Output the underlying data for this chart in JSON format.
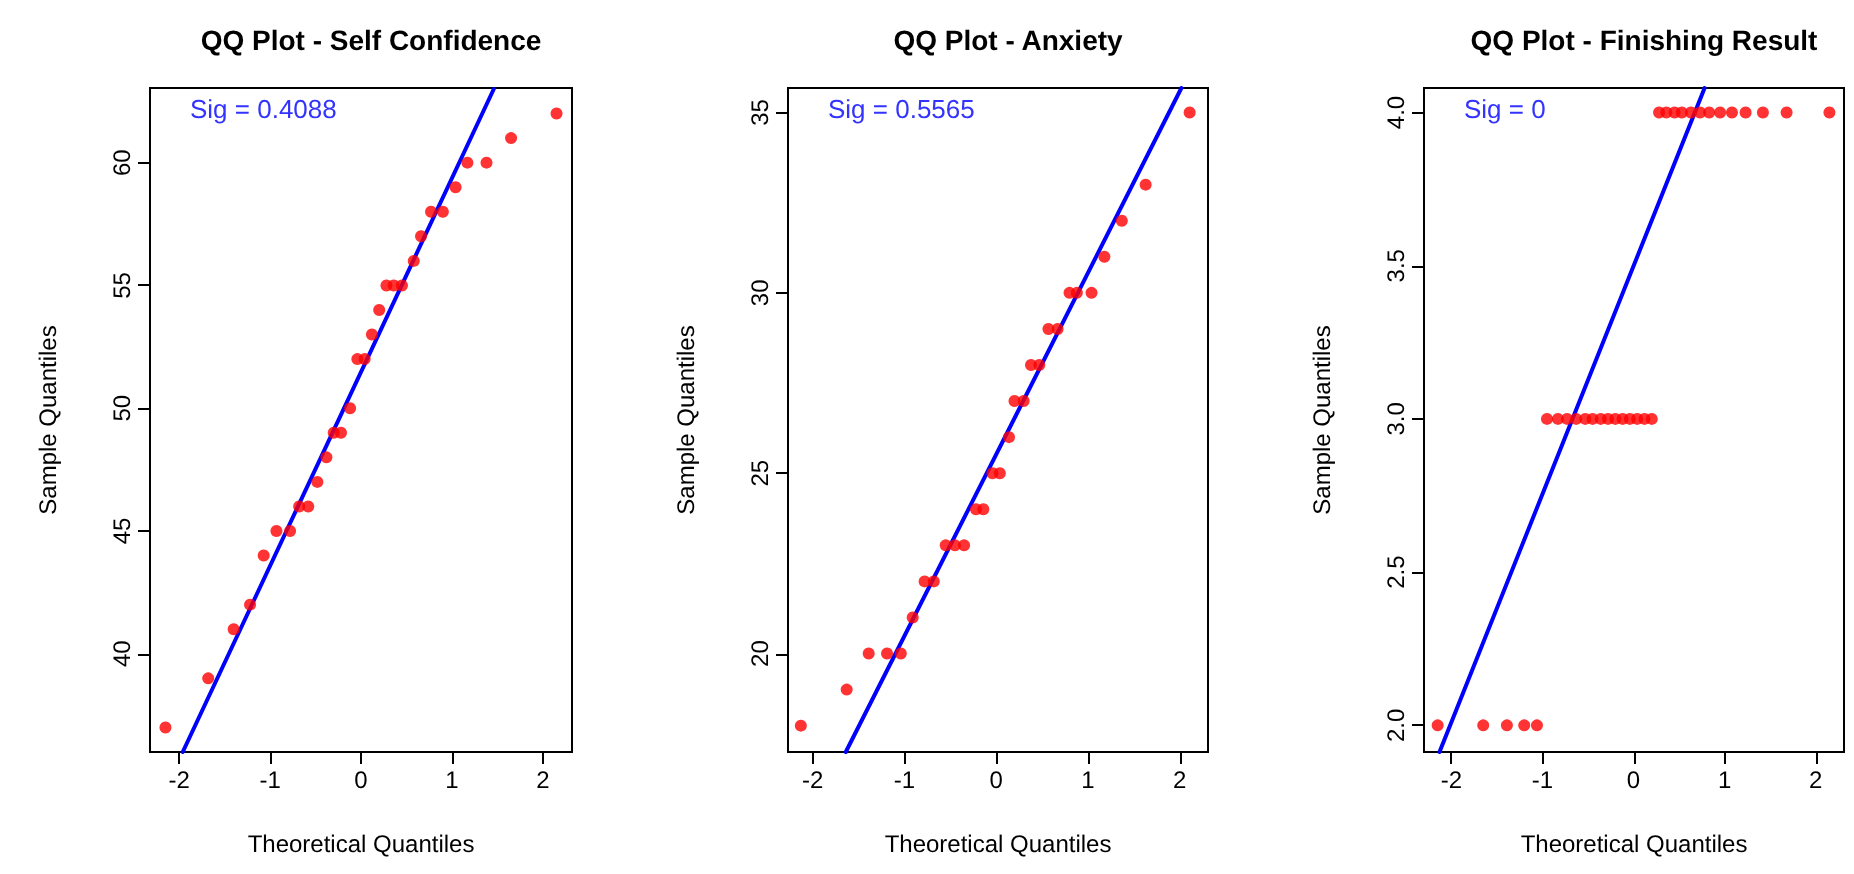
{
  "chart_data": [
    {
      "type": "scatter",
      "title": "QQ Plot - Self Confidence",
      "xlabel": "Theoretical Quantiles",
      "ylabel": "Sample Quantiles",
      "annotations": [
        "Sig = 0.4088"
      ],
      "grid": false,
      "xlim": [
        -2.32,
        2.32
      ],
      "xticks": [
        -2,
        -1,
        0,
        1,
        2
      ],
      "ylim": [
        36,
        63.04
      ],
      "yticks": [
        40,
        45,
        50,
        55,
        60
      ],
      "series": [
        {
          "marker": "circle",
          "color": "#ff0000",
          "x": [
            -2.15,
            -1.68,
            -1.4,
            -1.22,
            -1.07,
            -0.93,
            -0.78,
            -0.68,
            -0.58,
            -0.48,
            -0.38,
            -0.3,
            -0.22,
            -0.12,
            -0.04,
            0.04,
            0.12,
            0.2,
            0.28,
            0.36,
            0.45,
            0.58,
            0.66,
            0.77,
            0.9,
            1.04,
            1.17,
            1.38,
            1.65,
            2.15
          ],
          "values": [
            37,
            39,
            41,
            42,
            44,
            45,
            45,
            46,
            46,
            47,
            48,
            49,
            49,
            50,
            52,
            52,
            53,
            54,
            55,
            55,
            55,
            56,
            57,
            58,
            58,
            59,
            60,
            60,
            61,
            62
          ]
        },
        {
          "type": "line",
          "color": "#0000ff",
          "x": [
            -1.96,
            1.46
          ],
          "values": [
            36,
            63
          ]
        }
      ]
    },
    {
      "type": "scatter",
      "title": "QQ Plot - Anxiety",
      "xlabel": "Theoretical Quantiles",
      "ylabel": "Sample Quantiles",
      "annotations": [
        "Sig = 0.5565"
      ],
      "grid": false,
      "xlim": [
        -2.27,
        2.31
      ],
      "xticks": [
        -2,
        -1,
        0,
        1,
        2
      ],
      "ylim": [
        17.27,
        35.68
      ],
      "yticks": [
        20,
        25,
        30,
        35
      ],
      "series": [
        {
          "marker": "circle",
          "color": "#ff0000",
          "x": [
            -2.13,
            -1.63,
            -1.39,
            -1.19,
            -1.04,
            -0.91,
            -0.78,
            -0.68,
            -0.55,
            -0.45,
            -0.35,
            -0.22,
            -0.14,
            -0.04,
            0.04,
            0.14,
            0.2,
            0.3,
            0.38,
            0.47,
            0.57,
            0.67,
            0.8,
            0.88,
            1.04,
            1.18,
            1.37,
            1.63,
            2.11
          ],
          "values": [
            18,
            19,
            20,
            20,
            20,
            21,
            22,
            22,
            23,
            23,
            23,
            24,
            24,
            25,
            25,
            26,
            27,
            27,
            28,
            28,
            29,
            29,
            30,
            30,
            30,
            31,
            32,
            33,
            35
          ]
        },
        {
          "type": "line",
          "color": "#0000ff",
          "x": [
            -1.64,
            2.02
          ],
          "values": [
            17.27,
            35.68
          ]
        }
      ]
    },
    {
      "type": "scatter",
      "title": "QQ Plot - Finishing Result",
      "xlabel": "Theoretical Quantiles",
      "ylabel": "Sample Quantiles",
      "annotations": [
        "Sig = 0"
      ],
      "grid": false,
      "xlim": [
        -2.3,
        2.31
      ],
      "xticks": [
        -2,
        -1,
        0,
        1,
        2
      ],
      "ylim": [
        1.913,
        4.08
      ],
      "yticks": [
        {
          "value": 2,
          "label": "2.0"
        },
        {
          "value": 2.5,
          "label": "2.5"
        },
        {
          "value": 3,
          "label": "3.0"
        },
        {
          "value": 3.5,
          "label": "3.5"
        },
        {
          "value": 4,
          "label": "4.0"
        }
      ],
      "series": [
        {
          "marker": "circle",
          "color": "#ff0000",
          "x": [
            -2.15,
            -1.65,
            -1.39,
            -1.2,
            -1.06,
            -0.95,
            -0.83,
            -0.73,
            -0.63,
            -0.53,
            -0.45,
            -0.36,
            -0.28,
            -0.2,
            -0.12,
            -0.04,
            0.04,
            0.12,
            0.2,
            0.28,
            0.36,
            0.45,
            0.53,
            0.63,
            0.73,
            0.83,
            0.95,
            1.08,
            1.23,
            1.42,
            1.68,
            2.15
          ],
          "values": [
            2,
            2,
            2,
            2,
            2,
            3,
            3,
            3,
            3,
            3,
            3,
            3,
            3,
            3,
            3,
            3,
            3,
            3,
            3,
            4,
            4,
            4,
            4,
            4,
            4,
            4,
            4,
            4,
            4,
            4,
            4,
            4
          ]
        },
        {
          "type": "line",
          "color": "#0000ff",
          "x": [
            -2.13,
            0.78
          ],
          "values": [
            1.913,
            4.08
          ]
        }
      ]
    }
  ]
}
